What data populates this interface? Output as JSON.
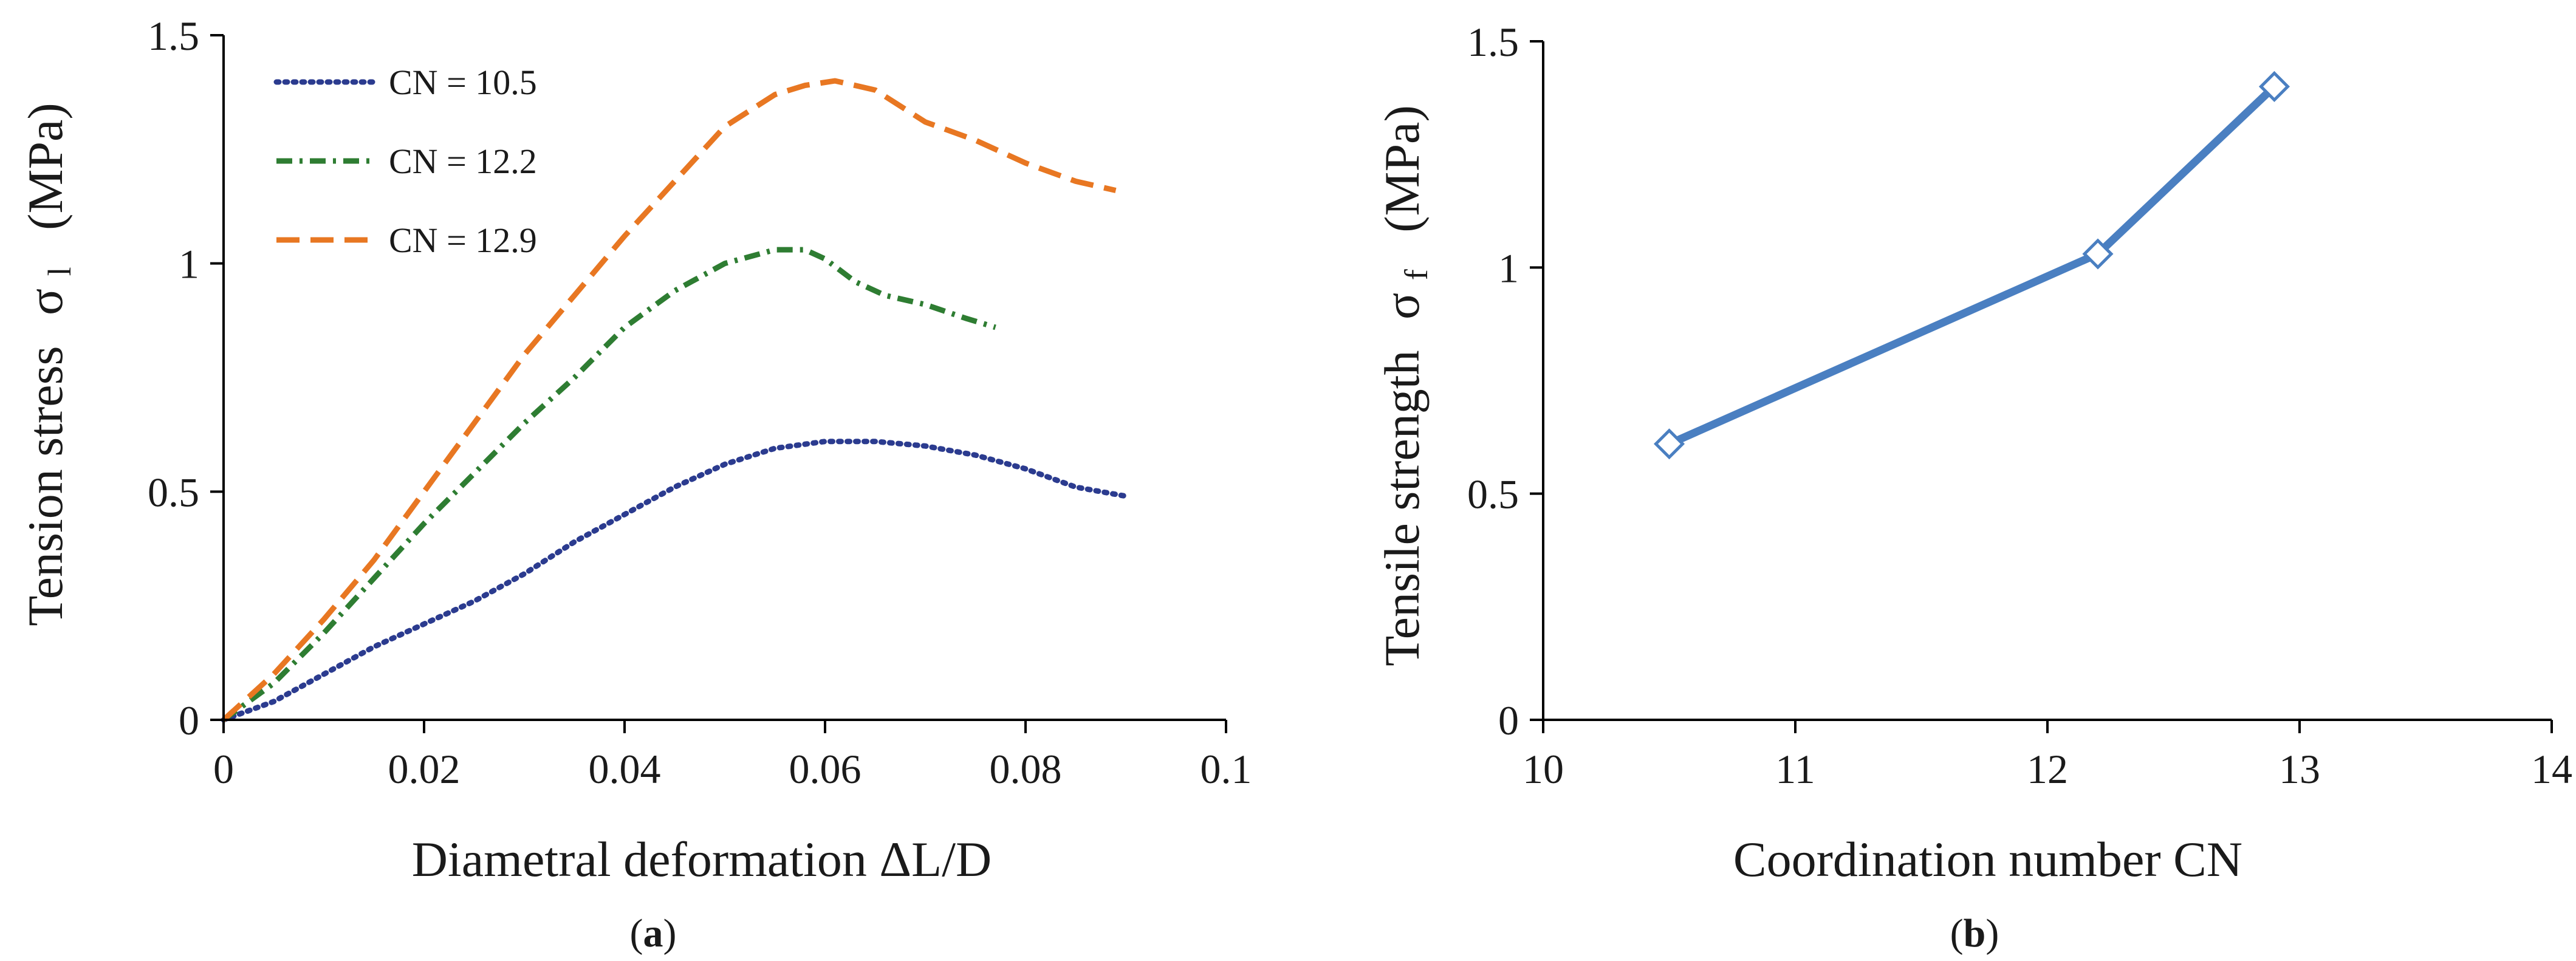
{
  "chart_data": [
    {
      "type": "line",
      "panel_label": "a",
      "title": "",
      "xlabel": "Diametral deformation ΔL/D",
      "ylabel": {
        "main": "Tension stress",
        "symbol": "σ",
        "subscript": "l",
        "unit": "(MPa)"
      },
      "xlim": [
        0,
        0.1
      ],
      "ylim": [
        0,
        1.5
      ],
      "x_ticks": [
        0,
        0.02,
        0.04,
        0.06,
        0.08,
        0.1
      ],
      "x_tick_labels": [
        "0",
        "0.02",
        "0.04",
        "0.06",
        "0.08",
        "0.1"
      ],
      "y_ticks": [
        0,
        0.5,
        1,
        1.5
      ],
      "y_tick_labels": [
        "0",
        "0.5",
        "1",
        "1.5"
      ],
      "grid": false,
      "legend": "top-left",
      "series": [
        {
          "name": "CN = 10.5",
          "color": "#2b3b8f",
          "dash": "dotted",
          "x": [
            0,
            0.005,
            0.01,
            0.015,
            0.02,
            0.025,
            0.03,
            0.035,
            0.04,
            0.045,
            0.05,
            0.055,
            0.06,
            0.065,
            0.07,
            0.075,
            0.08,
            0.085,
            0.09
          ],
          "y": [
            0,
            0.04,
            0.1,
            0.16,
            0.21,
            0.26,
            0.32,
            0.39,
            0.45,
            0.51,
            0.56,
            0.595,
            0.61,
            0.61,
            0.6,
            0.58,
            0.55,
            0.51,
            0.49
          ]
        },
        {
          "name": "CN = 12.2",
          "color": "#2e7d32",
          "dash": "dashdot",
          "x": [
            0,
            0.005,
            0.01,
            0.015,
            0.02,
            0.025,
            0.03,
            0.035,
            0.04,
            0.045,
            0.05,
            0.055,
            0.058,
            0.06,
            0.063,
            0.066,
            0.07,
            0.074,
            0.077
          ],
          "y": [
            0,
            0.08,
            0.19,
            0.31,
            0.43,
            0.54,
            0.65,
            0.75,
            0.86,
            0.94,
            1.0,
            1.03,
            1.03,
            1.01,
            0.96,
            0.93,
            0.91,
            0.88,
            0.86
          ]
        },
        {
          "name": "CN = 12.9",
          "color": "#e87722",
          "dash": "dashed",
          "x": [
            0,
            0.005,
            0.01,
            0.015,
            0.02,
            0.025,
            0.03,
            0.035,
            0.04,
            0.045,
            0.05,
            0.055,
            0.058,
            0.061,
            0.065,
            0.07,
            0.075,
            0.08,
            0.085,
            0.089
          ],
          "y": [
            0,
            0.1,
            0.22,
            0.35,
            0.5,
            0.65,
            0.8,
            0.93,
            1.06,
            1.18,
            1.3,
            1.37,
            1.39,
            1.4,
            1.38,
            1.31,
            1.27,
            1.22,
            1.18,
            1.16
          ]
        }
      ]
    },
    {
      "type": "line",
      "panel_label": "b",
      "title": "",
      "xlabel": "Coordination number  CN",
      "ylabel": {
        "main": "Tensile strength",
        "symbol": "σ",
        "subscript": "f",
        "unit": "(MPa)"
      },
      "xlim": [
        10,
        14
      ],
      "ylim": [
        0,
        1.5
      ],
      "x_ticks": [
        10,
        11,
        12,
        13,
        14
      ],
      "x_tick_labels": [
        "10",
        "11",
        "12",
        "13",
        "14"
      ],
      "y_ticks": [
        0,
        0.5,
        1,
        1.5
      ],
      "y_tick_labels": [
        "0",
        "0.5",
        "1",
        "1.5"
      ],
      "grid": false,
      "legend": "none",
      "series": [
        {
          "color": "#4a7fc1",
          "marker": "diamond",
          "x": [
            10.5,
            12.2,
            12.9
          ],
          "y": [
            0.61,
            1.03,
            1.4
          ]
        }
      ]
    }
  ]
}
